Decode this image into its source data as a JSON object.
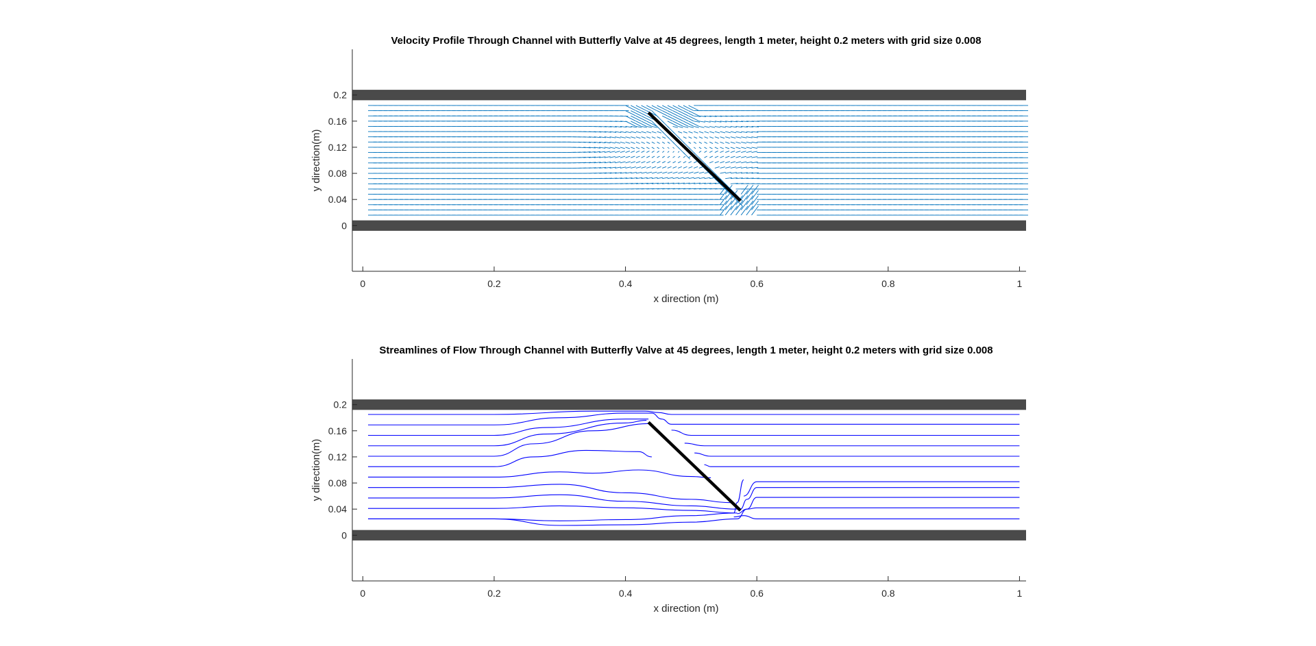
{
  "chart_data": [
    {
      "type": "quiver",
      "title": "Velocity Profile Through Channel with Butterfly Valve at 45 degrees, length 1 meter, height 0.2 meters with grid size 0.008",
      "xlabel": "x direction (m)",
      "ylabel": "y direction(m)",
      "xlim": [
        -0.016,
        1.01
      ],
      "ylim": [
        -0.07,
        0.27
      ],
      "xticks": [
        0,
        0.2,
        0.4,
        0.6,
        0.8,
        1
      ],
      "xtick_labels": [
        "0",
        "0.2",
        "0.4",
        "0.6",
        "0.8",
        "1"
      ],
      "yticks": [
        0,
        0.04,
        0.08,
        0.12,
        0.16,
        0.2
      ],
      "ytick_labels": [
        "0",
        "0.04",
        "0.08",
        "0.12",
        "0.16",
        "0.2"
      ],
      "walls": [
        {
          "name": "bottom",
          "x": [
            -0.016,
            1.01
          ],
          "y": [
            -0.008,
            0.008
          ]
        },
        {
          "name": "top",
          "x": [
            -0.016,
            1.01
          ],
          "y": [
            0.192,
            0.208
          ]
        }
      ],
      "valve": {
        "x": [
          0.435,
          0.575
        ],
        "y": [
          0.173,
          0.038
        ]
      },
      "field": {
        "x_range": [
          0.008,
          1.0
        ],
        "dx": 0.008,
        "y_range": [
          0.016,
          0.184
        ],
        "dy": 0.008
      },
      "colors": {
        "wall": "#4a4a4a",
        "valve": "#000000",
        "arrows": "#0072bd",
        "axes": "#262626"
      }
    },
    {
      "type": "streamlines",
      "title": "Streamlines of Flow Through Channel with Butterfly Valve at 45 degrees, length 1 meter, height 0.2 meters with grid size 0.008",
      "xlabel": "x direction (m)",
      "ylabel": "y direction(m)",
      "xlim": [
        -0.016,
        1.01
      ],
      "ylim": [
        -0.07,
        0.27
      ],
      "xticks": [
        0,
        0.2,
        0.4,
        0.6,
        0.8,
        1
      ],
      "xtick_labels": [
        "0",
        "0.2",
        "0.4",
        "0.6",
        "0.8",
        "1"
      ],
      "yticks": [
        0,
        0.04,
        0.08,
        0.12,
        0.16,
        0.2
      ],
      "ytick_labels": [
        "0",
        "0.04",
        "0.08",
        "0.12",
        "0.16",
        "0.2"
      ],
      "walls": [
        {
          "name": "bottom",
          "x": [
            -0.016,
            1.01
          ],
          "y": [
            -0.008,
            0.008
          ]
        },
        {
          "name": "top",
          "x": [
            -0.016,
            1.01
          ],
          "y": [
            0.192,
            0.208
          ]
        }
      ],
      "valve": {
        "x": [
          0.435,
          0.575
        ],
        "y": [
          0.173,
          0.038
        ]
      },
      "streamlines": [
        {
          "x": [
            0.008,
            0.2,
            0.35,
            0.43,
            0.45,
            0.47,
            0.6,
            1.0
          ],
          "y": [
            0.185,
            0.185,
            0.19,
            0.19,
            0.188,
            0.185,
            0.185,
            0.185
          ]
        },
        {
          "x": [
            0.008,
            0.2,
            0.3,
            0.4,
            0.44,
            0.455,
            0.47,
            0.6,
            1.0
          ],
          "y": [
            0.169,
            0.169,
            0.18,
            0.187,
            0.187,
            0.178,
            0.17,
            0.17,
            0.17
          ]
        },
        {
          "x": [
            0.008,
            0.2,
            0.28,
            0.4,
            0.435
          ],
          "y": [
            0.153,
            0.153,
            0.165,
            0.178,
            0.178
          ]
        },
        {
          "x": [
            0.008,
            0.2,
            0.28,
            0.4,
            0.432
          ],
          "y": [
            0.137,
            0.137,
            0.155,
            0.172,
            0.176
          ]
        },
        {
          "x": [
            0.008,
            0.2,
            0.26,
            0.35,
            0.44
          ],
          "y": [
            0.121,
            0.121,
            0.14,
            0.16,
            0.171
          ]
        },
        {
          "x": [
            0.008,
            0.2,
            0.26,
            0.34,
            0.42,
            0.44
          ],
          "y": [
            0.105,
            0.105,
            0.12,
            0.13,
            0.128,
            0.12
          ]
        },
        {
          "x": [
            0.47,
            0.5,
            1.0
          ],
          "y": [
            0.161,
            0.153,
            0.153
          ]
        },
        {
          "x": [
            0.49,
            0.52,
            1.0
          ],
          "y": [
            0.141,
            0.137,
            0.137
          ]
        },
        {
          "x": [
            0.505,
            0.53,
            0.55,
            1.0
          ],
          "y": [
            0.126,
            0.121,
            0.121,
            0.121
          ]
        },
        {
          "x": [
            0.52,
            0.53,
            1.0
          ],
          "y": [
            0.108,
            0.105,
            0.105
          ]
        },
        {
          "x": [
            0.008,
            0.2,
            0.3,
            0.35,
            0.42,
            0.5,
            0.53
          ],
          "y": [
            0.089,
            0.089,
            0.097,
            0.095,
            0.1,
            0.09,
            0.088
          ]
        },
        {
          "x": [
            0.008,
            0.2,
            0.3,
            0.4,
            0.5,
            0.56
          ],
          "y": [
            0.073,
            0.073,
            0.078,
            0.065,
            0.055,
            0.05
          ]
        },
        {
          "x": [
            0.008,
            0.2,
            0.3,
            0.4,
            0.5,
            0.57
          ],
          "y": [
            0.057,
            0.057,
            0.062,
            0.052,
            0.045,
            0.04
          ]
        },
        {
          "x": [
            0.008,
            0.2,
            0.3,
            0.4,
            0.5,
            0.57
          ],
          "y": [
            0.041,
            0.041,
            0.045,
            0.042,
            0.038,
            0.034
          ]
        },
        {
          "x": [
            0.008,
            0.2,
            0.3,
            0.4,
            0.5,
            0.565,
            0.57,
            0.58
          ],
          "y": [
            0.025,
            0.025,
            0.022,
            0.024,
            0.03,
            0.034,
            0.05,
            0.085
          ]
        },
        {
          "x": [
            0.008,
            0.2,
            0.3,
            0.4,
            0.5,
            0.57,
            0.585,
            0.6,
            1.0
          ],
          "y": [
            0.025,
            0.025,
            0.015,
            0.016,
            0.02,
            0.025,
            0.04,
            0.058,
            0.058
          ]
        },
        {
          "x": [
            0.575,
            0.585,
            0.6,
            1.0
          ],
          "y": [
            0.04,
            0.055,
            0.073,
            0.073
          ]
        },
        {
          "x": [
            0.58,
            0.6,
            1.0
          ],
          "y": [
            0.06,
            0.082,
            0.082
          ]
        },
        {
          "x": [
            0.57,
            0.585,
            0.6,
            1.0
          ],
          "y": [
            0.033,
            0.04,
            0.042,
            0.042
          ]
        },
        {
          "x": [
            0.565,
            0.58,
            0.6,
            1.0
          ],
          "y": [
            0.028,
            0.03,
            0.025,
            0.025
          ]
        }
      ],
      "colors": {
        "wall": "#4a4a4a",
        "valve": "#000000",
        "streamlines": "#0000ff",
        "axes": "#262626"
      }
    }
  ]
}
